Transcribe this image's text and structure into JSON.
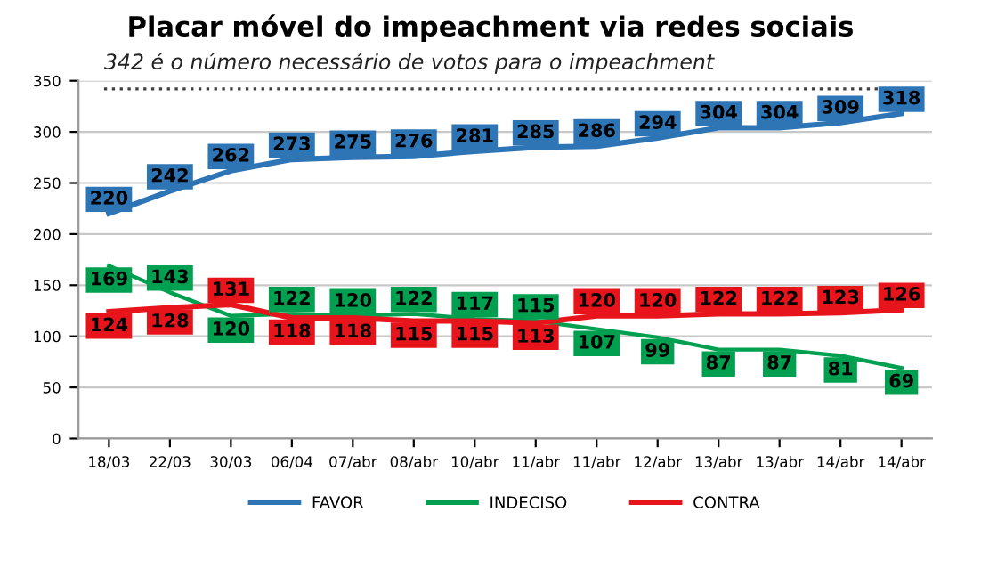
{
  "chart_data": {
    "type": "line",
    "title": "Placar móvel do impeachment via redes sociais",
    "categories": [
      "18/03",
      "22/03",
      "30/03",
      "06/04",
      "07/abr",
      "08/abr",
      "10/abr",
      "11/abr",
      "11/abr",
      "12/abr",
      "13/abr",
      "13/abr",
      "14/abr",
      "14/abr"
    ],
    "series": [
      {
        "name": "FAVOR",
        "color": "#2e75b6",
        "values": [
          220,
          242,
          262,
          273,
          275,
          276,
          281,
          285,
          286,
          294,
          304,
          304,
          309,
          318
        ]
      },
      {
        "name": "INDECISO",
        "color": "#00a050",
        "values": [
          169,
          143,
          120,
          122,
          120,
          122,
          117,
          115,
          107,
          99,
          87,
          87,
          81,
          69
        ]
      },
      {
        "name": "CONTRA",
        "color": "#e8141c",
        "values": [
          124,
          128,
          131,
          118,
          118,
          115,
          115,
          113,
          120,
          120,
          122,
          122,
          123,
          126
        ]
      }
    ],
    "ylim": [
      0,
      350
    ],
    "yticks": [
      0,
      50,
      100,
      150,
      200,
      250,
      300,
      350
    ],
    "grid": "y",
    "legend": "bottom",
    "data_labels": true,
    "marker": "none",
    "line_style": "solid",
    "ref_lines": [
      {
        "axis": "y",
        "value": 342,
        "label": "342 é o número necessário de votos para o impeachment",
        "color": "#404040",
        "line_style": "dotted"
      }
    ]
  }
}
